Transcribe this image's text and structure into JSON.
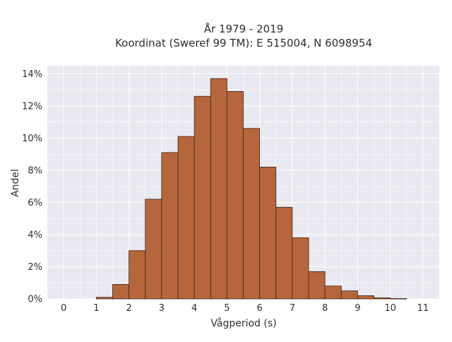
{
  "chart_data": {
    "type": "bar",
    "title_line1": "År 1979 - 2019",
    "title_line2": "Koordinat (Sweref 99 TM): E 515004, N 6098954",
    "xlabel": "Vågperiod (s)",
    "ylabel": "Andel",
    "xlim": [
      -0.5,
      11.5
    ],
    "ylim": [
      0,
      0.145
    ],
    "x_ticks": [
      0,
      1,
      2,
      3,
      4,
      5,
      6,
      7,
      8,
      9,
      10,
      11
    ],
    "y_ticks": [
      0,
      0.02,
      0.04,
      0.06,
      0.08,
      0.1,
      0.12,
      0.14
    ],
    "y_tick_labels": [
      "0%",
      "2%",
      "4%",
      "6%",
      "8%",
      "10%",
      "12%",
      "14%"
    ],
    "bin_width": 0.5,
    "bins": [
      {
        "start": 1.0,
        "value": 0.001
      },
      {
        "start": 1.5,
        "value": 0.009
      },
      {
        "start": 2.0,
        "value": 0.03
      },
      {
        "start": 2.5,
        "value": 0.062
      },
      {
        "start": 3.0,
        "value": 0.091
      },
      {
        "start": 3.5,
        "value": 0.101
      },
      {
        "start": 4.0,
        "value": 0.126
      },
      {
        "start": 4.5,
        "value": 0.137
      },
      {
        "start": 5.0,
        "value": 0.129
      },
      {
        "start": 5.5,
        "value": 0.106
      },
      {
        "start": 6.0,
        "value": 0.082
      },
      {
        "start": 6.5,
        "value": 0.057
      },
      {
        "start": 7.0,
        "value": 0.038
      },
      {
        "start": 7.5,
        "value": 0.017
      },
      {
        "start": 8.0,
        "value": 0.008
      },
      {
        "start": 8.5,
        "value": 0.005
      },
      {
        "start": 9.0,
        "value": 0.002
      },
      {
        "start": 9.5,
        "value": 0.0007
      },
      {
        "start": 10.0,
        "value": 0.0002
      }
    ],
    "grid": true,
    "colors": {
      "bar_fill": "#b5673b",
      "bar_edge": "#3d2414",
      "plot_background": "#e9e9f1",
      "grid": "#ffffff"
    }
  }
}
